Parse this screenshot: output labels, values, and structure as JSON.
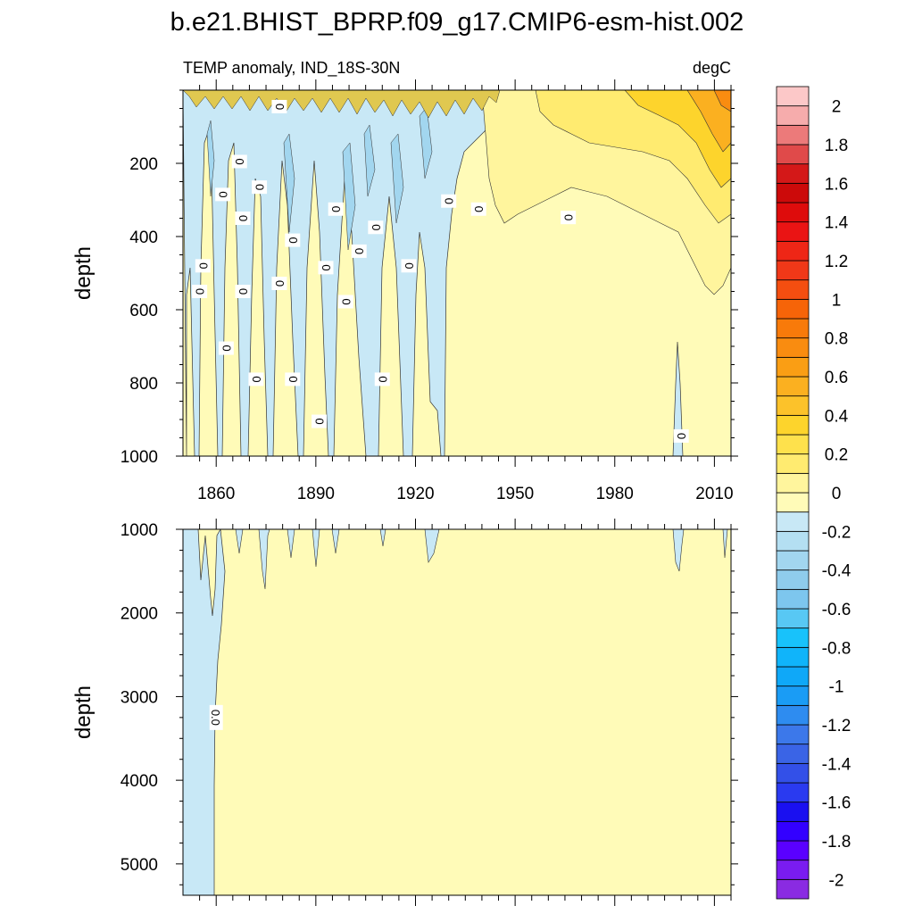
{
  "chart_data": {
    "type": "heatmap",
    "title": "b.e21.BHIST_BPRP.f09_g17.CMIP6-esm-hist.002",
    "variable_label": "TEMP anomaly, IND_18S-30N",
    "units": "degC",
    "xlim": [
      1850,
      2015
    ],
    "x_ticks": [
      1860,
      1890,
      1920,
      1950,
      1980,
      2010
    ],
    "panels": [
      {
        "name": "upper",
        "ylabel": "depth",
        "ylim": [
          0,
          1000
        ],
        "y_ticks": [
          200,
          400,
          600,
          800,
          1000
        ],
        "contour_labels": [
          {
            "text": "0",
            "year": 1879,
            "depth": 45
          },
          {
            "text": "0",
            "year": 1867,
            "depth": 195
          },
          {
            "text": "0",
            "year": 1873,
            "depth": 265
          },
          {
            "text": "0",
            "year": 1862,
            "depth": 285
          },
          {
            "text": "0",
            "year": 1868,
            "depth": 350
          },
          {
            "text": "0",
            "year": 1930,
            "depth": 303
          },
          {
            "text": "0",
            "year": 1939,
            "depth": 325
          },
          {
            "text": "0",
            "year": 1966,
            "depth": 348
          },
          {
            "text": "0",
            "year": 1896,
            "depth": 325
          },
          {
            "text": "0",
            "year": 1908,
            "depth": 375
          },
          {
            "text": "0",
            "year": 1883,
            "depth": 410
          },
          {
            "text": "0",
            "year": 1903,
            "depth": 440
          },
          {
            "text": "0",
            "year": 1856,
            "depth": 480
          },
          {
            "text": "0",
            "year": 1918,
            "depth": 480
          },
          {
            "text": "0",
            "year": 1893,
            "depth": 485
          },
          {
            "text": "0",
            "year": 1855,
            "depth": 550
          },
          {
            "text": "0",
            "year": 1868,
            "depth": 550
          },
          {
            "text": "0",
            "year": 1879,
            "depth": 528
          },
          {
            "text": "0",
            "year": 1899,
            "depth": 578
          },
          {
            "text": "0",
            "year": 1863,
            "depth": 705
          },
          {
            "text": "0",
            "year": 1872,
            "depth": 790
          },
          {
            "text": "0",
            "year": 1883,
            "depth": 790
          },
          {
            "text": "0",
            "year": 1910,
            "depth": 790
          },
          {
            "text": "0",
            "year": 1891,
            "depth": 905
          },
          {
            "text": "0",
            "year": 2000,
            "depth": 945
          }
        ]
      },
      {
        "name": "lower",
        "ylabel": "depth",
        "ylim": [
          1000,
          5375
        ],
        "y_ticks": [
          1000,
          2000,
          3000,
          4000,
          5000
        ],
        "contour_labels": [
          {
            "text": "0.0",
            "year": 1860,
            "depth": 3250
          }
        ]
      }
    ],
    "colorbar": {
      "levels": [
        -2.1,
        -2,
        -1.9,
        -1.8,
        -1.7,
        -1.6,
        -1.5,
        -1.4,
        -1.3,
        -1.2,
        -1.1,
        -1,
        -0.9,
        -0.8,
        -0.7,
        -0.6,
        -0.5,
        -0.4,
        -0.3,
        -0.2,
        -0.1,
        0,
        0.1,
        0.2,
        0.3,
        0.4,
        0.5,
        0.6,
        0.7,
        0.8,
        0.9,
        1,
        1.1,
        1.2,
        1.3,
        1.4,
        1.5,
        1.6,
        1.7,
        1.8,
        1.9,
        2,
        2.1
      ],
      "labels": [
        "-2",
        "-1.8",
        "-1.6",
        "-1.4",
        "-1.2",
        "-1",
        "-0.8",
        "-0.6",
        "-0.4",
        "-0.2",
        "0",
        "0.2",
        "0.4",
        "0.6",
        "0.8",
        "1",
        "1.2",
        "1.4",
        "1.6",
        "1.8",
        "2"
      ],
      "label_values": [
        -2,
        -1.8,
        -1.6,
        -1.4,
        -1.2,
        -1,
        -0.8,
        -0.6,
        -0.4,
        -0.2,
        0,
        0.2,
        0.4,
        0.6,
        0.8,
        1,
        1.2,
        1.4,
        1.6,
        1.8,
        2
      ],
      "colors": [
        "#8a2be2",
        "#7a1cf0",
        "#5a00ff",
        "#3300ff",
        "#1a10f0",
        "#2a3af0",
        "#3350e8",
        "#3a64e6",
        "#3c78ea",
        "#2e8cf0",
        "#1a9cf5",
        "#0fa8f8",
        "#10b4fa",
        "#18c2fb",
        "#58c8f4",
        "#7dc6ee",
        "#8fccec",
        "#a2d6ef",
        "#b4dff2",
        "#c8e8f6",
        "#fffbb8",
        "#fff59d",
        "#ffeb70",
        "#fee14c",
        "#fdd42c",
        "#fcc22a",
        "#fbb020",
        "#fa9e14",
        "#f98c10",
        "#f87a0a",
        "#f66408",
        "#f44e10",
        "#f03818",
        "#ee2616",
        "#ea1414",
        "#de0c0c",
        "#cc0a0a",
        "#d41818",
        "#e04a4a",
        "#ec7a7a",
        "#f6acac",
        "#fcc8c8"
      ]
    }
  }
}
